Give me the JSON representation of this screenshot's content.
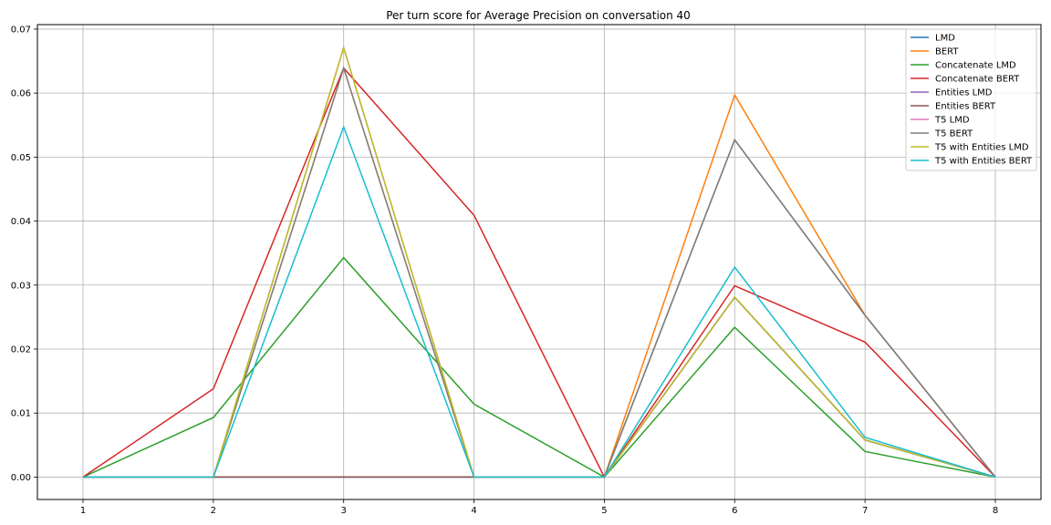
{
  "chart_data": {
    "type": "line",
    "title": "Per turn score for Average Precision on conversation 40",
    "xlabel": "",
    "ylabel": "",
    "x": [
      1,
      2,
      3,
      4,
      5,
      6,
      7,
      8
    ],
    "xticks": [
      "1",
      "2",
      "3",
      "4",
      "5",
      "6",
      "7",
      "8"
    ],
    "yticks": [
      "0.00",
      "0.01",
      "0.02",
      "0.03",
      "0.04",
      "0.05",
      "0.06",
      "0.07"
    ],
    "xlim": [
      0.65,
      8.35
    ],
    "ylim": [
      -0.0035,
      0.0707
    ],
    "grid": true,
    "legend_position": "top-right",
    "series": [
      {
        "name": "LMD",
        "color": "#1f77b4",
        "values": [
          0,
          0,
          0,
          0,
          0,
          0.0281,
          0.0058,
          0
        ]
      },
      {
        "name": "BERT",
        "color": "#ff7f0e",
        "values": [
          0,
          0,
          0.0639,
          0,
          0,
          0.0597,
          0.0253,
          0
        ]
      },
      {
        "name": "Concatenate LMD",
        "color": "#2ca02c",
        "values": [
          0,
          0.0093,
          0.0343,
          0.0114,
          0,
          0.0234,
          0.004,
          0
        ]
      },
      {
        "name": "Concatenate BERT",
        "color": "#d62728",
        "values": [
          0,
          0.0138,
          0.0639,
          0.0409,
          0,
          0.0299,
          0.0211,
          0
        ]
      },
      {
        "name": "Entities LMD",
        "color": "#9467bd",
        "values": [
          0,
          0,
          0,
          0,
          0,
          0.0281,
          0.0058,
          0
        ]
      },
      {
        "name": "Entities BERT",
        "color": "#8c564b",
        "values": [
          0,
          0,
          0,
          0,
          0,
          0.0527,
          0.0253,
          0
        ]
      },
      {
        "name": "T5 LMD",
        "color": "#e377c2",
        "values": [
          0,
          0,
          0.0671,
          0,
          0,
          0.0281,
          0.0058,
          0
        ]
      },
      {
        "name": "T5 BERT",
        "color": "#7f7f7f",
        "values": [
          0,
          0,
          0.0639,
          0,
          0,
          0.0527,
          0.0253,
          0
        ]
      },
      {
        "name": "T5 with Entities LMD",
        "color": "#bcbd22",
        "values": [
          0,
          0,
          0.0671,
          0,
          0,
          0.0281,
          0.0058,
          0
        ]
      },
      {
        "name": "T5 with Entities BERT",
        "color": "#17becf",
        "values": [
          0,
          0,
          0.0547,
          0,
          0,
          0.0328,
          0.0062,
          0
        ]
      }
    ]
  }
}
